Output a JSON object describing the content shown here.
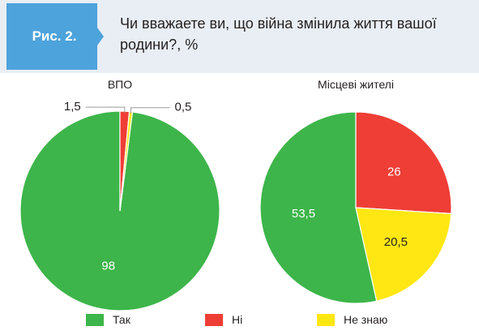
{
  "figure": {
    "label": "Рис. 2.",
    "question": "Чи вважаете ви, що війна змінила життя вашої родини?, %",
    "badge_color": "#4da3dc",
    "header_bg": "#e9eef5"
  },
  "chart_data": [
    {
      "type": "pie",
      "title": "ВПО",
      "categories": [
        "Так",
        "Ні",
        "Не знаю"
      ],
      "values": [
        98,
        1.5,
        0.5
      ],
      "value_labels": [
        "98",
        "1,5",
        "0,5"
      ],
      "colors": [
        "#3db54a",
        "#ee3e36",
        "#fee712"
      ]
    },
    {
      "type": "pie",
      "title": "Місцеві жителі",
      "categories": [
        "Так",
        "Ні",
        "Не знаю"
      ],
      "values": [
        53.5,
        26,
        20.5
      ],
      "value_labels": [
        "53,5",
        "26",
        "20,5"
      ],
      "colors": [
        "#3db54a",
        "#ee3e36",
        "#fee712"
      ]
    }
  ],
  "legend": {
    "placement": "bottom",
    "items": [
      {
        "label": "Так",
        "color": "#3db54a"
      },
      {
        "label": "Ні",
        "color": "#ee3e36"
      },
      {
        "label": "Не знаю",
        "color": "#fee712"
      }
    ]
  }
}
